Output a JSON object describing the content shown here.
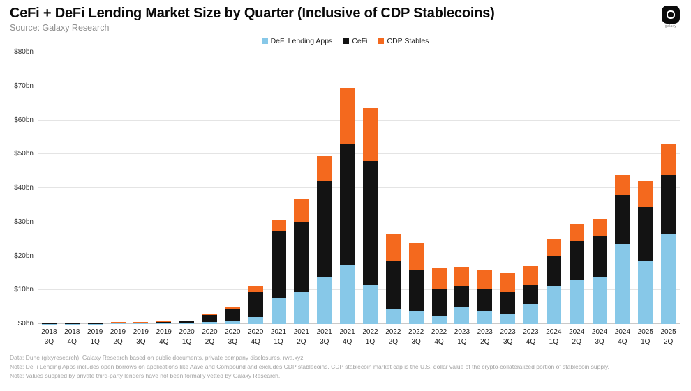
{
  "header": {
    "title": "CeFi + DeFi Lending Market Size by Quarter (Inclusive of CDP Stablecoins)",
    "source": "Source: Galaxy Research",
    "logo_label": "galaxy"
  },
  "chart_data": {
    "type": "bar",
    "stacked": true,
    "title": "CeFi + DeFi Lending Market Size by Quarter (Inclusive of CDP Stablecoins)",
    "xlabel": "",
    "ylabel": "",
    "ylim": [
      0,
      80
    ],
    "grid": true,
    "legend_position": "top-center",
    "yticks": [
      "$0bn",
      "$10bn",
      "$20bn",
      "$30bn",
      "$40bn",
      "$50bn",
      "$60bn",
      "$70bn",
      "$80bn"
    ],
    "categories": [
      "2018 3Q",
      "2018 4Q",
      "2019 1Q",
      "2019 2Q",
      "2019 3Q",
      "2019 4Q",
      "2020 1Q",
      "2020 2Q",
      "2020 3Q",
      "2020 4Q",
      "2021 1Q",
      "2021 2Q",
      "2021 3Q",
      "2021 4Q",
      "2022 1Q",
      "2022 2Q",
      "2022 3Q",
      "2022 4Q",
      "2023 1Q",
      "2023 2Q",
      "2023 3Q",
      "2023 4Q",
      "2024 1Q",
      "2024 2Q",
      "2024 3Q",
      "2024 4Q",
      "2025 1Q",
      "2025 2Q"
    ],
    "series": [
      {
        "name": "DeFi Lending Apps",
        "key": "defi-lending-apps",
        "color": "#87C8E8",
        "values": [
          0.05,
          0.06,
          0.1,
          0.15,
          0.15,
          0.2,
          0.25,
          0.6,
          1.0,
          2.0,
          7.5,
          9.5,
          14.0,
          17.5,
          11.5,
          4.5,
          4.0,
          2.5,
          5.0,
          4.0,
          3.0,
          6.0,
          11.0,
          13.0,
          14.0,
          23.5,
          18.5,
          26.5
        ]
      },
      {
        "name": "CeFi",
        "key": "cefi",
        "color": "#131313",
        "values": [
          0.1,
          0.15,
          0.2,
          0.3,
          0.35,
          0.4,
          0.55,
          2.0,
          3.3,
          7.5,
          20.0,
          20.5,
          28.0,
          35.5,
          36.5,
          14.0,
          12.0,
          8.0,
          6.0,
          6.5,
          6.5,
          5.5,
          9.0,
          11.5,
          12.0,
          14.5,
          16.0,
          17.5
        ]
      },
      {
        "name": "CDP Stables",
        "key": "cdp-stables",
        "color": "#F4691E",
        "values": [
          0.0,
          0.0,
          0.05,
          0.1,
          0.1,
          0.15,
          0.2,
          0.3,
          0.7,
          1.5,
          3.0,
          7.0,
          7.5,
          16.5,
          15.5,
          8.0,
          8.0,
          6.0,
          5.8,
          5.5,
          5.5,
          5.5,
          5.0,
          5.0,
          5.0,
          6.0,
          7.5,
          9.0
        ]
      }
    ]
  },
  "footnotes": [
    "Data: Dune (glxyresearch), Galaxy Research based on public documents, private company disclosures, rwa.xyz",
    "Note: DeFi Lending Apps includes open borrows on applications like Aave and Compound and excludes CDP stablecoins. CDP stablecoin market cap is the U.S. dollar value of the crypto-collateralized portion of stablecoin supply.",
    "Note: Values supplied by private third-party lenders have not been formally vetted by Galaxy Research."
  ]
}
